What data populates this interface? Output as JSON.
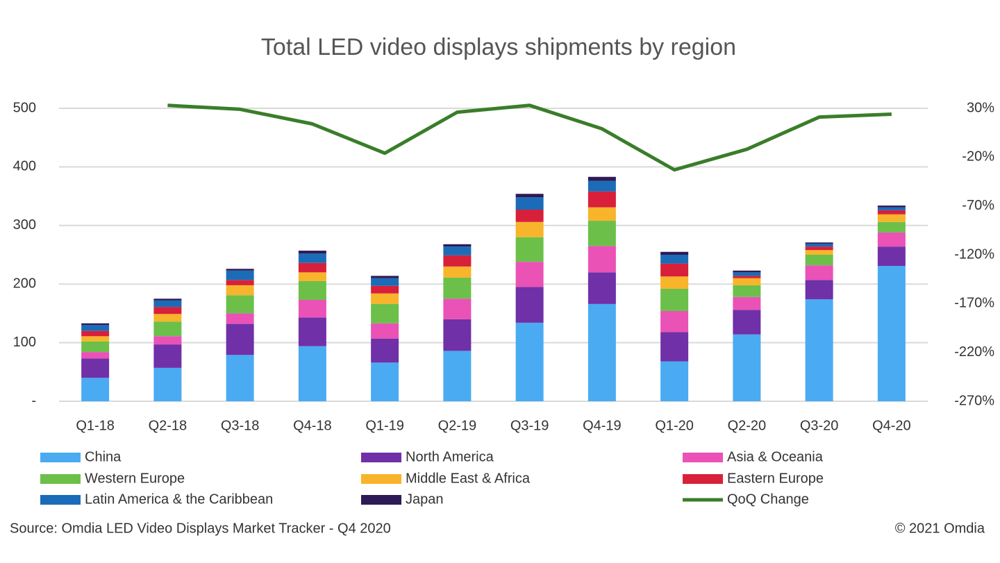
{
  "chart_data": {
    "type": "bar",
    "stacked": true,
    "title": "Total LED video displays shipments by region",
    "source": "Source: Omdia LED Video Displays Market Tracker - Q4 2020",
    "copyright": "© 2021 Omdia",
    "categories": [
      "Q1-18",
      "Q2-18",
      "Q3-18",
      "Q4-18",
      "Q1-19",
      "Q2-19",
      "Q3-19",
      "Q4-19",
      "Q1-20",
      "Q2-20",
      "Q3-20",
      "Q4-20"
    ],
    "series": [
      {
        "name": "China",
        "color": "#4aabf2",
        "values": [
          40,
          57,
          79,
          94,
          66,
          86,
          134,
          166,
          68,
          114,
          174,
          231
        ]
      },
      {
        "name": "North America",
        "color": "#7030a8",
        "values": [
          33,
          40,
          53,
          49,
          41,
          54,
          61,
          54,
          50,
          42,
          33,
          33
        ]
      },
      {
        "name": "Asia & Oceania",
        "color": "#ea52b6",
        "values": [
          11,
          14,
          18,
          30,
          26,
          35,
          43,
          45,
          36,
          22,
          25,
          24
        ]
      },
      {
        "name": "Western Europe",
        "color": "#6cc04a",
        "values": [
          18,
          25,
          31,
          32,
          33,
          36,
          42,
          43,
          38,
          20,
          18,
          18
        ]
      },
      {
        "name": "Middle East & Africa",
        "color": "#f8b42a",
        "values": [
          9,
          13,
          17,
          15,
          18,
          19,
          26,
          23,
          21,
          12,
          8,
          13
        ]
      },
      {
        "name": "Eastern Europe",
        "color": "#d8203a",
        "values": [
          9,
          12,
          9,
          16,
          13,
          19,
          21,
          27,
          22,
          4,
          6,
          7
        ]
      },
      {
        "name": "Latin America & the Caribbean",
        "color": "#1a6cb8",
        "values": [
          10,
          11,
          16,
          16,
          13,
          15,
          21,
          18,
          15,
          6,
          5,
          5
        ]
      },
      {
        "name": "Japan",
        "color": "#2e1a56",
        "values": [
          3,
          3,
          3,
          5,
          4,
          4,
          6,
          7,
          5,
          3,
          2,
          3
        ]
      },
      {
        "name": "QoQ Change",
        "color": "#3a7d2a",
        "type": "line",
        "axis": "y2",
        "values": [
          null,
          33,
          29,
          14,
          -16,
          26,
          33,
          9,
          -33,
          -12,
          21,
          24
        ]
      }
    ],
    "ylim": [
      0,
      500
    ],
    "yticks": [
      {
        "value": 0,
        "label": "-"
      },
      100,
      200,
      300,
      400,
      500
    ],
    "y2lim": [
      -270,
      30
    ],
    "y2ticks": [
      {
        "value": -270,
        "label": "-270%"
      },
      {
        "value": -220,
        "label": "-220%"
      },
      {
        "value": -170,
        "label": "-170%"
      },
      {
        "value": -120,
        "label": "-120%"
      },
      {
        "value": -70,
        "label": "-70%"
      },
      {
        "value": -20,
        "label": "-20%"
      },
      {
        "value": 30,
        "label": "30%"
      }
    ],
    "grid": true,
    "legend": "bottom"
  }
}
